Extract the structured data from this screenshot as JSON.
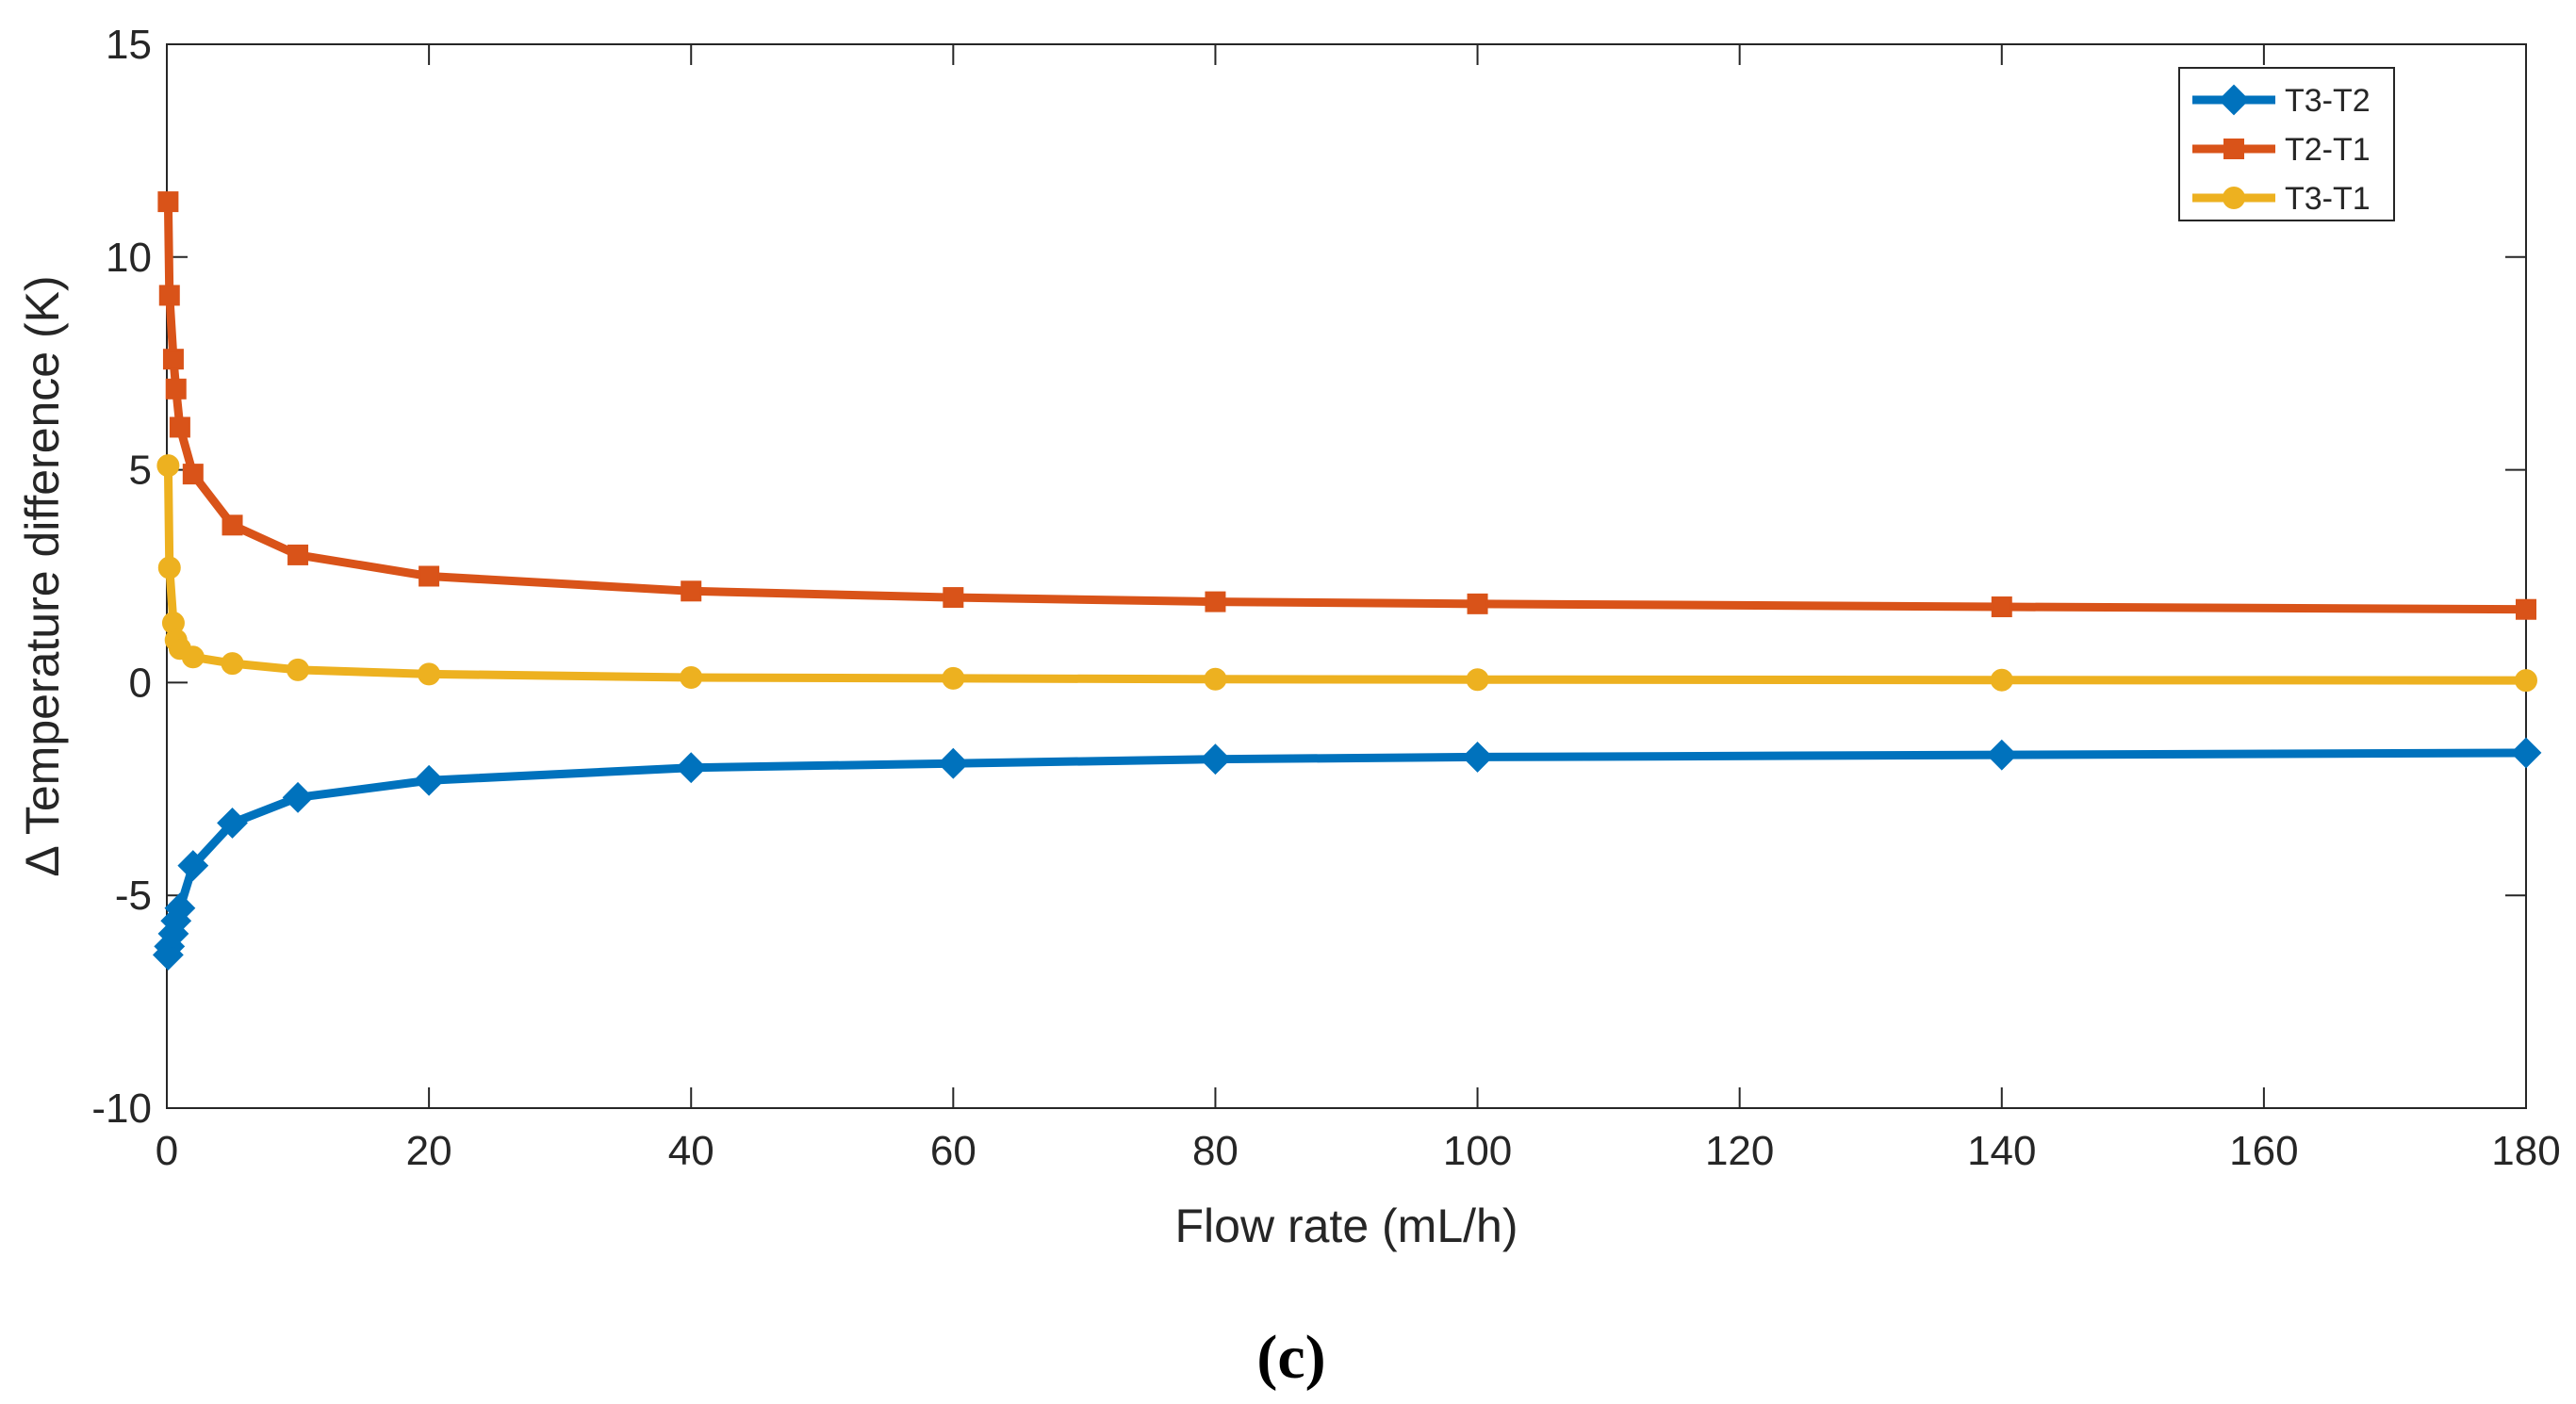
{
  "chart_data": {
    "type": "line",
    "title": "",
    "xlabel": "Flow rate (mL/h)",
    "ylabel": "Δ Temperature difference (K)",
    "xlim": [
      0,
      180
    ],
    "ylim": [
      -10,
      15
    ],
    "xticks": [
      0,
      20,
      40,
      60,
      80,
      100,
      120,
      140,
      160,
      180
    ],
    "yticks": [
      -10,
      -5,
      0,
      5,
      10,
      15
    ],
    "xtick_labels": [
      "0",
      "20",
      "40",
      "60",
      "80",
      "100",
      "120",
      "140",
      "160",
      "180"
    ],
    "ytick_labels": [
      "-10",
      "-5",
      "0",
      "5",
      "10",
      "15"
    ],
    "grid": false,
    "legend_position": "top-right",
    "panel_label": "(c)",
    "x": [
      0.1,
      0.2,
      0.5,
      0.7,
      1,
      2,
      5,
      10,
      20,
      40,
      60,
      80,
      100,
      140,
      180
    ],
    "series": [
      {
        "name": "T3-T2",
        "color": "#0072BD",
        "marker": "diamond",
        "values": [
          -6.4,
          -6.2,
          -5.9,
          -5.6,
          -5.3,
          -4.3,
          -3.3,
          -2.7,
          -2.3,
          -2.0,
          -1.9,
          -1.8,
          -1.75,
          -1.7,
          -1.65
        ]
      },
      {
        "name": "T2-T1",
        "color": "#D95319",
        "marker": "square",
        "values": [
          11.3,
          9.1,
          7.6,
          6.9,
          6.0,
          4.9,
          3.7,
          3.0,
          2.5,
          2.15,
          2.0,
          1.9,
          1.85,
          1.78,
          1.72
        ]
      },
      {
        "name": "T3-T1",
        "color": "#EDB120",
        "marker": "circle",
        "values": [
          5.1,
          2.7,
          1.4,
          1.0,
          0.8,
          0.6,
          0.45,
          0.3,
          0.2,
          0.12,
          0.1,
          0.08,
          0.07,
          0.06,
          0.05
        ]
      }
    ]
  }
}
